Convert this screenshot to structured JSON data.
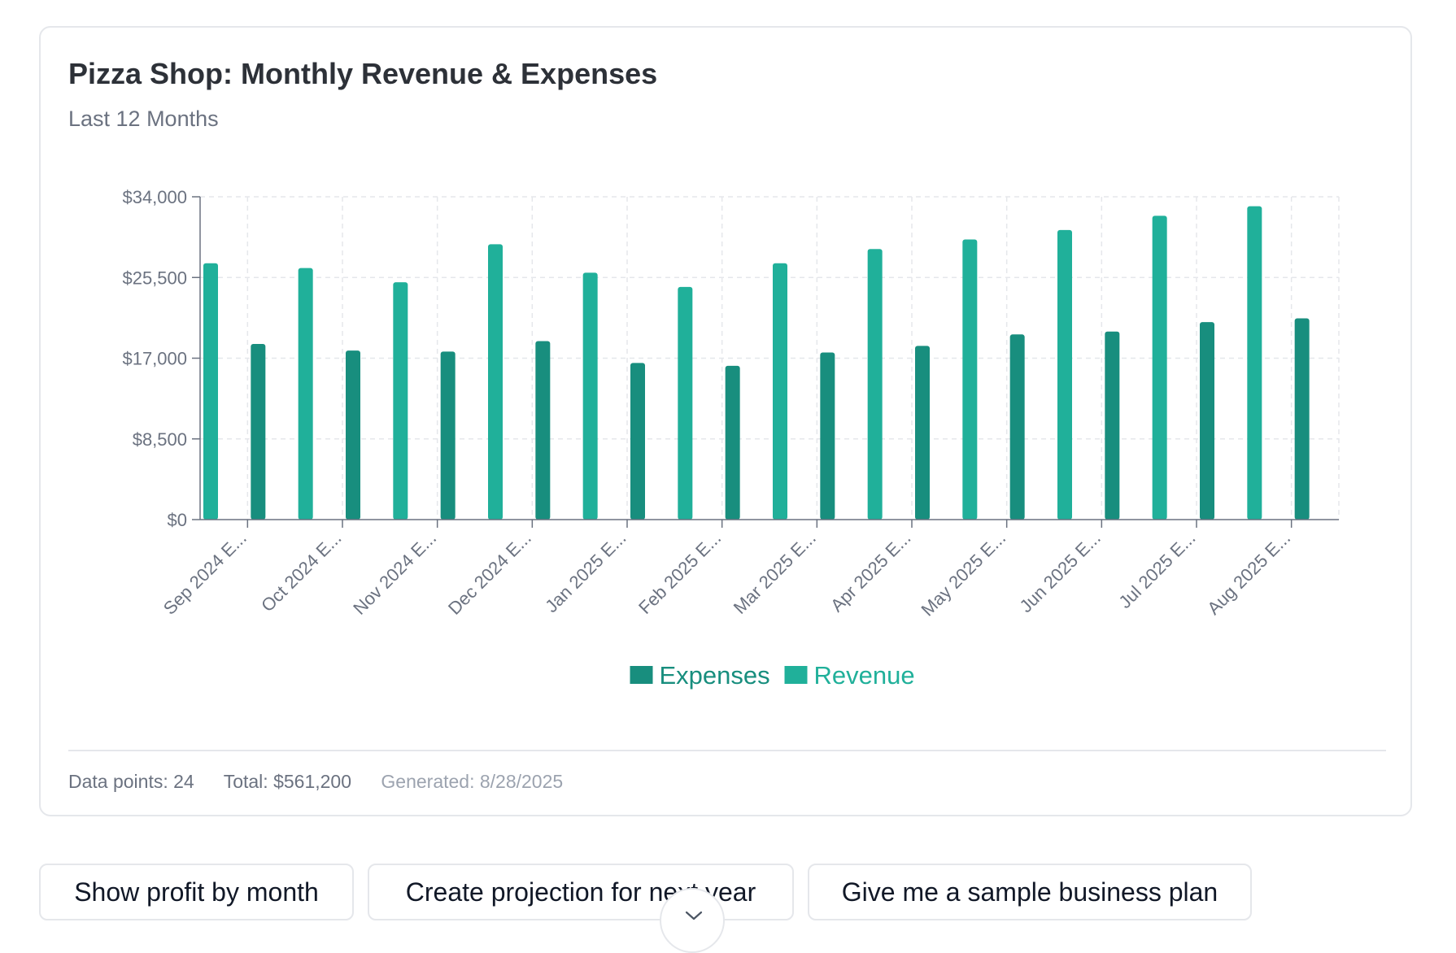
{
  "card": {
    "title": "Pizza Shop: Monthly Revenue & Expenses",
    "subtitle": "Last 12 Months"
  },
  "chart_data": {
    "type": "bar",
    "categories": [
      "Sep 2024 E...",
      "Oct 2024 E...",
      "Nov 2024 E...",
      "Dec 2024 E...",
      "Jan 2025 E...",
      "Feb 2025 E...",
      "Mar 2025 E...",
      "Apr 2025 E...",
      "May 2025 E...",
      "Jun 2025 E...",
      "Jul 2025 E...",
      "Aug 2025 E..."
    ],
    "series": [
      {
        "name": "Revenue",
        "color": "#20b09a",
        "values": [
          27000,
          26500,
          25000,
          29000,
          26000,
          24500,
          27000,
          28500,
          29500,
          30500,
          32000,
          33000
        ]
      },
      {
        "name": "Expenses",
        "color": "#188e7e",
        "values": [
          18500,
          17800,
          17700,
          18800,
          16500,
          16200,
          17600,
          18300,
          19500,
          19800,
          20800,
          21200
        ]
      }
    ],
    "legend": [
      "Expenses",
      "Revenue"
    ],
    "y_ticks": [
      "$0",
      "$8,500",
      "$17,000",
      "$25,500",
      "$34,000"
    ],
    "ylim": [
      0,
      34000
    ],
    "grid": true,
    "legend_position": "bottom"
  },
  "footer": {
    "data_points": "Data points: 24",
    "total": "Total: $561,200",
    "generated": "Generated: 8/28/2025"
  },
  "suggestions": [
    "Show profit by month",
    "Create projection for next year",
    "Give me a sample business plan"
  ]
}
